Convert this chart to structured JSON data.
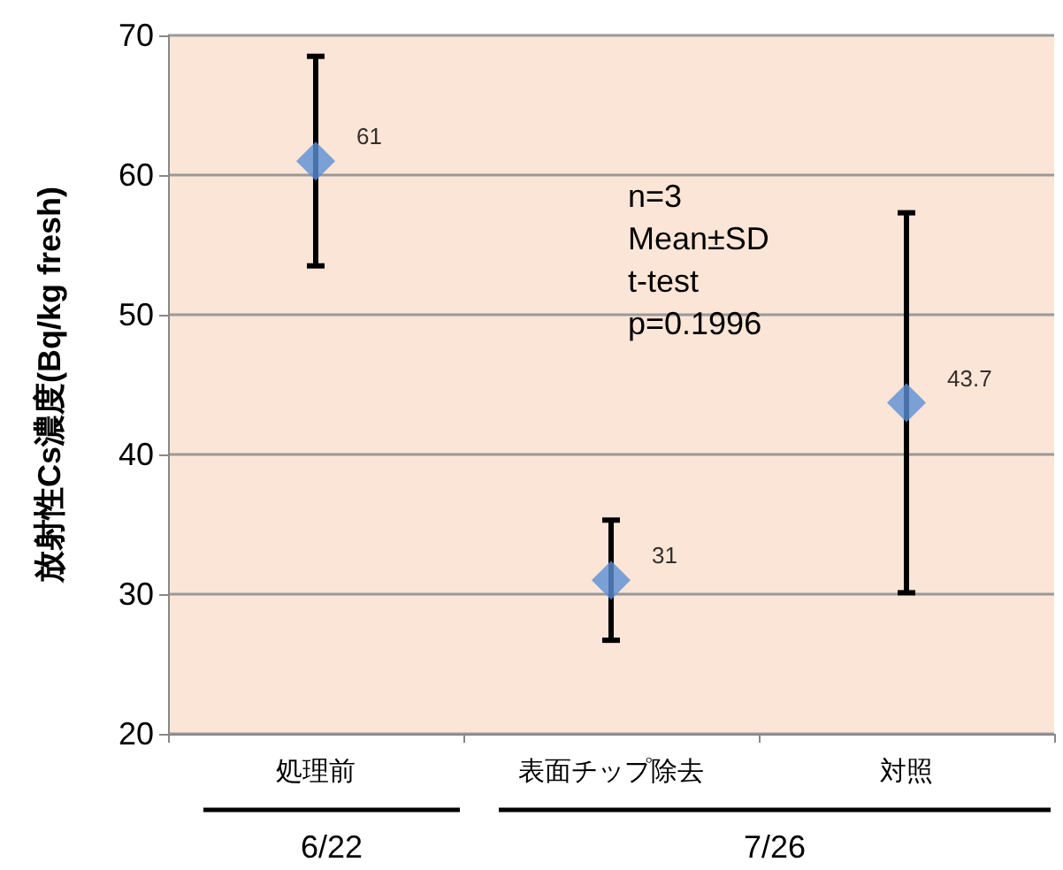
{
  "chart_data": {
    "type": "scatter",
    "ylabel": "放射性Cs濃度(Bq/kg fresh)",
    "categories": [
      "処理前",
      "表面チップ除去",
      "対照"
    ],
    "series": [
      {
        "color": "#5b8fd6",
        "values": [
          61,
          31,
          43.7
        ],
        "errors": [
          7.5,
          4.3,
          13.6
        ]
      }
    ],
    "data_labels": true,
    "marker": "diamond",
    "ylim": [
      20,
      70
    ],
    "yticks": [
      20,
      30,
      40,
      50,
      60,
      70
    ],
    "grid": "y",
    "annotations": [
      "n=3",
      "Mean±SD",
      "t-test",
      "p=0.1996",
      "6/22",
      "7/26"
    ]
  }
}
